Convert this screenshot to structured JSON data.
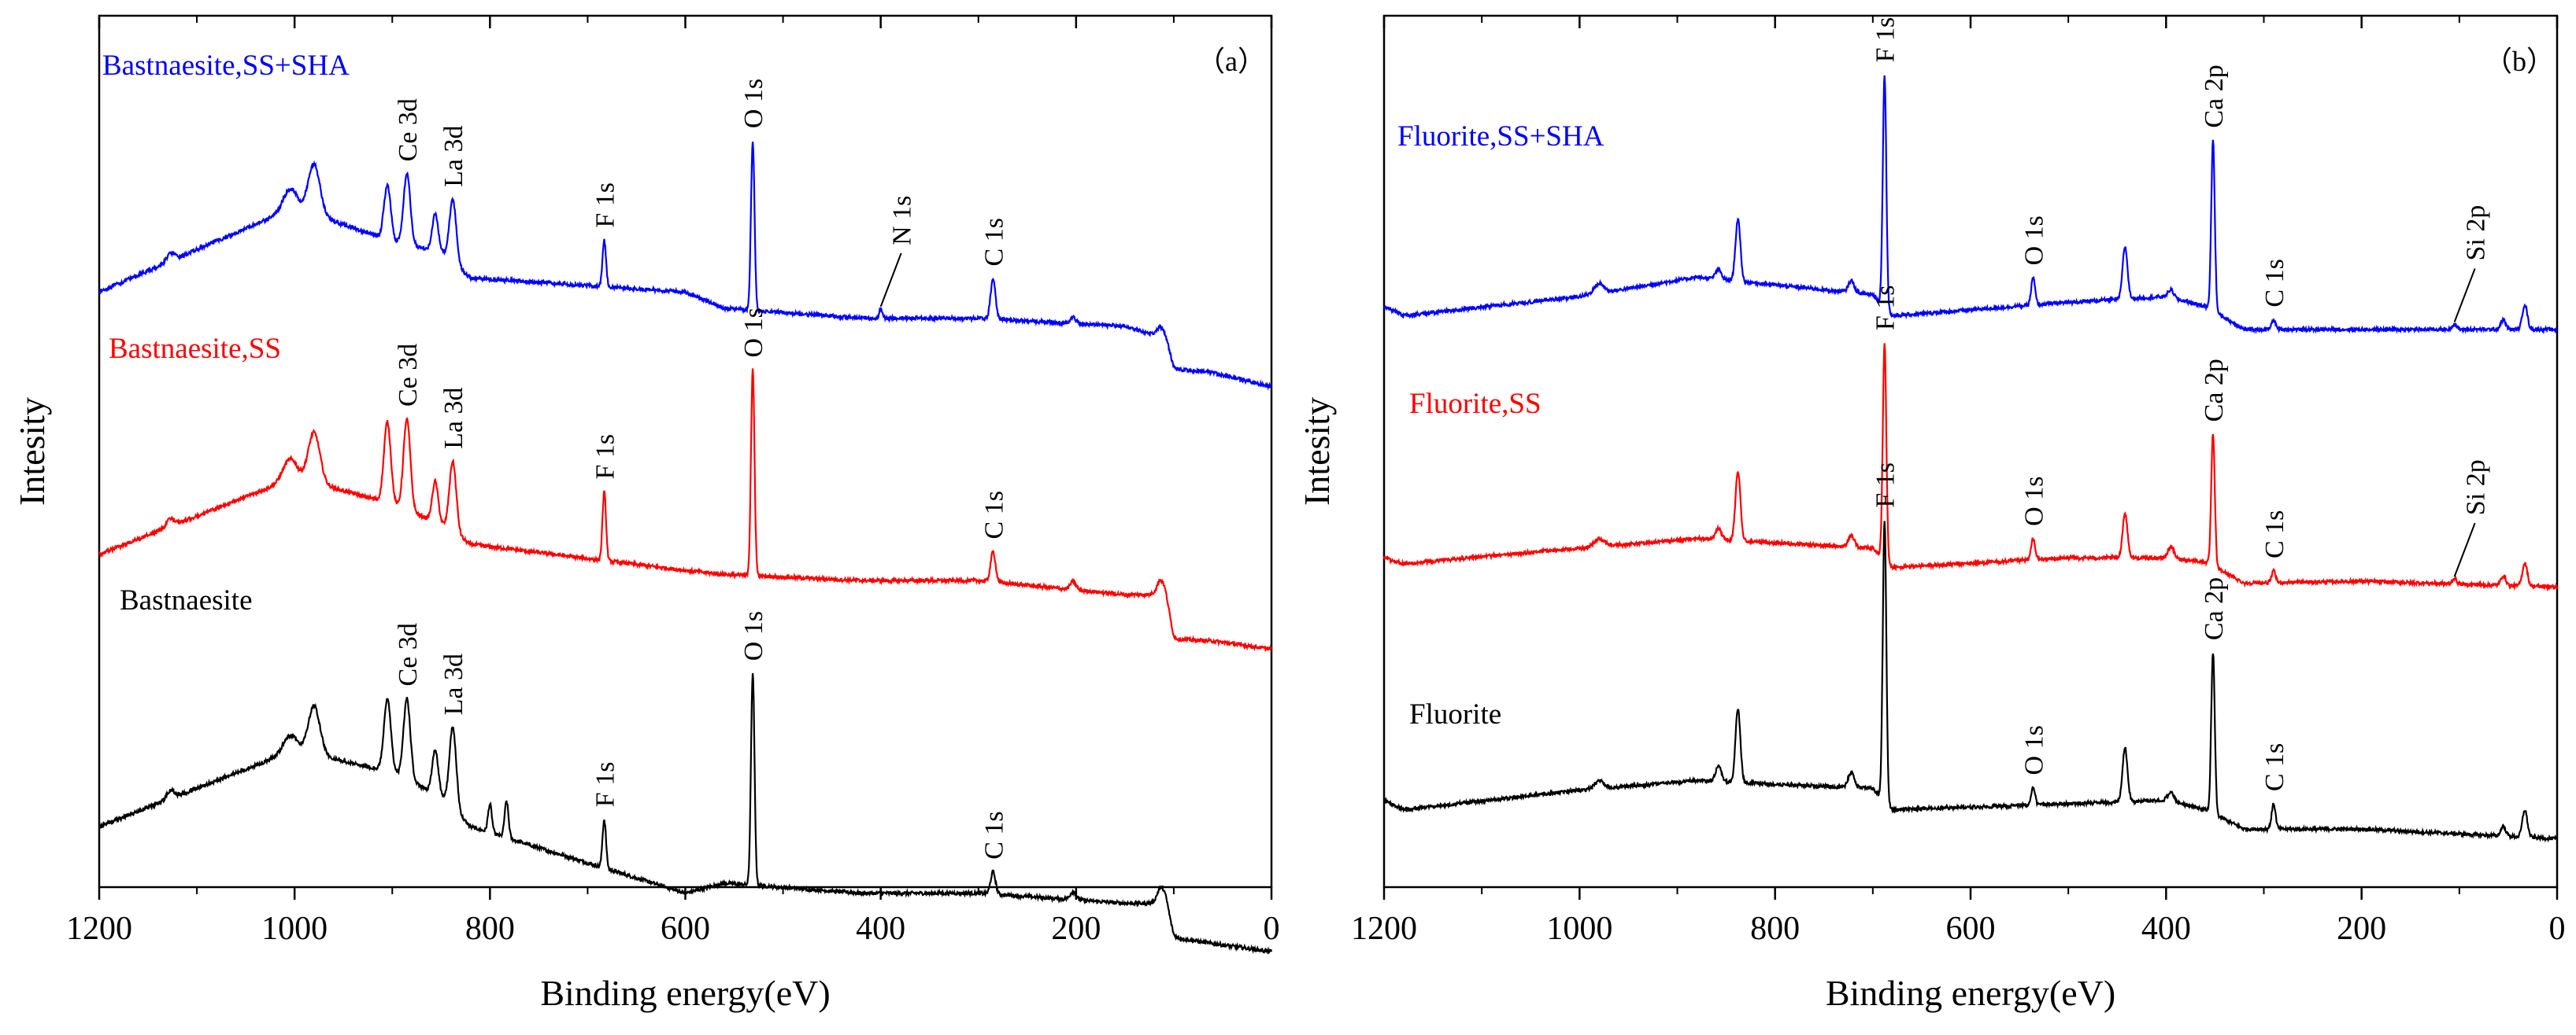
{
  "chart_data": [
    {
      "type": "line",
      "panel": "(a)",
      "xlabel": "Binding energy(eV)",
      "ylabel": "Intesity",
      "xlim": [
        1200,
        0
      ],
      "x_reversed": true,
      "xticks": [
        1200,
        1000,
        800,
        600,
        400,
        200,
        0
      ],
      "yticks": [],
      "grid": false,
      "series": [
        {
          "name": "Bastnaesite,SS+SHA",
          "color": "#0000ff",
          "baseline": 2.35,
          "background": [
            [
              1200,
              0.0
            ],
            [
              1000,
              0.42
            ],
            [
              900,
              0.25
            ],
            [
              850,
              0.2
            ],
            [
              820,
              0.07
            ],
            [
              600,
              0.0
            ],
            [
              560,
              -0.08
            ],
            [
              420,
              -0.13
            ],
            [
              300,
              -0.13
            ],
            [
              150,
              -0.17
            ],
            [
              115,
              -0.22
            ],
            [
              100,
              -0.38
            ],
            [
              60,
              -0.4
            ],
            [
              0,
              -0.47
            ]
          ],
          "peaks": [
            [
              1127,
              0.04,
              4
            ],
            [
              1005,
              0.1,
              7
            ],
            [
              980,
              0.25,
              6
            ],
            [
              905,
              0.27,
              3.5
            ],
            [
              885,
              0.35,
              3.5
            ],
            [
              856,
              0.18,
              3
            ],
            [
              838,
              0.31,
              3.5
            ],
            [
              683,
              0.23,
              1.8
            ],
            [
              531,
              0.84,
              1.8
            ],
            [
              400,
              0.05,
              1.5
            ],
            [
              285,
              0.2,
              2.5
            ],
            [
              203,
              0.03,
              3
            ],
            [
              110,
              0.08,
              5
            ]
          ],
          "peak_labels": [
            {
              "text": "Ce 3d",
              "x": 885
            },
            {
              "text": "La 3d",
              "x": 838
            },
            {
              "text": "F 1s",
              "x": 683
            },
            {
              "text": "O 1s",
              "x": 531
            },
            {
              "text": "N 1s",
              "x": 400
            },
            {
              "text": "C 1s",
              "x": 285
            }
          ]
        },
        {
          "name": "Bastnaesite,SS",
          "color": "#ff0000",
          "baseline": 1.05,
          "background": [
            [
              1200,
              0.0
            ],
            [
              1000,
              0.38
            ],
            [
              900,
              0.25
            ],
            [
              850,
              0.15
            ],
            [
              820,
              0.05
            ],
            [
              600,
              -0.08
            ],
            [
              560,
              -0.1
            ],
            [
              420,
              -0.13
            ],
            [
              300,
              -0.13
            ],
            [
              150,
              -0.2
            ],
            [
              115,
              -0.2
            ],
            [
              100,
              -0.42
            ],
            [
              60,
              -0.43
            ],
            [
              0,
              -0.47
            ]
          ],
          "peaks": [
            [
              1127,
              0.04,
              4
            ],
            [
              1005,
              0.1,
              7
            ],
            [
              980,
              0.25,
              6
            ],
            [
              905,
              0.4,
              3.5
            ],
            [
              885,
              0.45,
              3.5
            ],
            [
              856,
              0.2,
              3
            ],
            [
              838,
              0.35,
              3.5
            ],
            [
              683,
              0.34,
              1.8
            ],
            [
              531,
              1.02,
              1.8
            ],
            [
              285,
              0.15,
              2.5
            ],
            [
              203,
              0.04,
              3
            ],
            [
              110,
              0.12,
              5
            ]
          ],
          "peak_labels": [
            {
              "text": "Ce 3d",
              "x": 885
            },
            {
              "text": "La 3d",
              "x": 838
            },
            {
              "text": "F 1s",
              "x": 683
            },
            {
              "text": "O 1s",
              "x": 531
            },
            {
              "text": "C 1s",
              "x": 285
            }
          ]
        },
        {
          "name": "Bastnaesite",
          "color": "#000000",
          "baseline": -0.3,
          "background": [
            [
              1200,
              0.0
            ],
            [
              1000,
              0.38
            ],
            [
              900,
              0.27
            ],
            [
              850,
              0.15
            ],
            [
              820,
              0.0
            ],
            [
              600,
              -0.33
            ],
            [
              560,
              -0.28
            ],
            [
              420,
              -0.33
            ],
            [
              300,
              -0.33
            ],
            [
              150,
              -0.38
            ],
            [
              115,
              -0.38
            ],
            [
              100,
              -0.55
            ],
            [
              60,
              -0.58
            ],
            [
              0,
              -0.62
            ]
          ],
          "peaks": [
            [
              1127,
              0.04,
              4
            ],
            [
              1005,
              0.08,
              7
            ],
            [
              980,
              0.24,
              6
            ],
            [
              905,
              0.36,
              3.5
            ],
            [
              885,
              0.4,
              3.5
            ],
            [
              856,
              0.22,
              3
            ],
            [
              838,
              0.4,
              3.5
            ],
            [
              800,
              0.14,
              2
            ],
            [
              783,
              0.18,
              2
            ],
            [
              683,
              0.24,
              1.8
            ],
            [
              531,
              1.05,
              1.8
            ],
            [
              285,
              0.11,
              2.5
            ],
            [
              203,
              0.04,
              3
            ],
            [
              110,
              0.12,
              5
            ]
          ],
          "peak_labels": [
            {
              "text": "Ce 3d",
              "x": 885
            },
            {
              "text": "La 3d",
              "x": 838
            },
            {
              "text": "F 1s",
              "x": 683
            },
            {
              "text": "O 1s",
              "x": 531
            },
            {
              "text": "C 1s",
              "x": 285
            }
          ]
        }
      ]
    },
    {
      "type": "line",
      "panel": "(b)",
      "xlabel": "Binding energy(eV)",
      "ylabel": "Intesity",
      "xlim": [
        1200,
        0
      ],
      "x_reversed": true,
      "xticks": [
        1200,
        1000,
        800,
        600,
        400,
        200,
        0
      ],
      "yticks": [],
      "grid": false,
      "series": [
        {
          "name": "Fluorite,SS+SHA",
          "color": "#0000ff",
          "baseline": 2.55,
          "background": [
            [
              1200,
              0.0
            ],
            [
              1180,
              -0.05
            ],
            [
              1000,
              0.05
            ],
            [
              880,
              0.15
            ],
            [
              840,
              0.13
            ],
            [
              700,
              0.06
            ],
            [
              680,
              -0.05
            ],
            [
              500,
              0.02
            ],
            [
              400,
              0.05
            ],
            [
              360,
              0.0
            ],
            [
              320,
              -0.12
            ],
            [
              200,
              -0.12
            ],
            [
              0,
              -0.12
            ]
          ],
          "peaks": [
            [
              980,
              0.05,
              5
            ],
            [
              858,
              0.05,
              3
            ],
            [
              838,
              0.32,
              2.5
            ],
            [
              722,
              0.06,
              3
            ],
            [
              688,
              1.2,
              1.8
            ],
            [
              536,
              0.14,
              2
            ],
            [
              442,
              0.27,
              2.5
            ],
            [
              395,
              0.04,
              3
            ],
            [
              352,
              0.88,
              1.8
            ],
            [
              290,
              0.05,
              2
            ],
            [
              105,
              0.03,
              2
            ],
            [
              55,
              0.05,
              2.5
            ],
            [
              33,
              0.13,
              2.5
            ]
          ],
          "peak_labels": [
            {
              "text": "F 1s",
              "x": 688
            },
            {
              "text": "O 1s",
              "x": 536
            },
            {
              "text": "Ca 2p",
              "x": 352
            },
            {
              "text": "C 1s",
              "x": 290
            },
            {
              "text": "Si 2p",
              "x": 105
            }
          ]
        },
        {
          "name": "Fluorite,SS",
          "color": "#ff0000",
          "baseline": 1.25,
          "background": [
            [
              1200,
              0.0
            ],
            [
              1180,
              -0.03
            ],
            [
              1000,
              0.05
            ],
            [
              880,
              0.1
            ],
            [
              840,
              0.09
            ],
            [
              700,
              0.05
            ],
            [
              680,
              -0.05
            ],
            [
              500,
              0.0
            ],
            [
              400,
              0.0
            ],
            [
              360,
              -0.02
            ],
            [
              320,
              -0.13
            ],
            [
              200,
              -0.12
            ],
            [
              0,
              -0.15
            ]
          ],
          "peaks": [
            [
              980,
              0.04,
              5
            ],
            [
              858,
              0.06,
              3
            ],
            [
              838,
              0.36,
              2.5
            ],
            [
              722,
              0.06,
              3
            ],
            [
              688,
              1.12,
              1.8
            ],
            [
              536,
              0.11,
              2
            ],
            [
              442,
              0.23,
              2.5
            ],
            [
              395,
              0.06,
              3
            ],
            [
              352,
              0.68,
              1.8
            ],
            [
              290,
              0.06,
              2
            ],
            [
              105,
              0.03,
              2
            ],
            [
              55,
              0.05,
              2.5
            ],
            [
              33,
              0.12,
              2.5
            ]
          ],
          "peak_labels": [
            {
              "text": "F 1s",
              "x": 688
            },
            {
              "text": "O 1s",
              "x": 536
            },
            {
              "text": "Ca 2p",
              "x": 352
            },
            {
              "text": "C 1s",
              "x": 290
            },
            {
              "text": "Si 2p",
              "x": 105
            }
          ]
        },
        {
          "name": "Fluorite",
          "color": "#000000",
          "baseline": 0.0,
          "background": [
            [
              1200,
              0.0
            ],
            [
              1180,
              -0.05
            ],
            [
              1000,
              0.05
            ],
            [
              880,
              0.1
            ],
            [
              840,
              0.09
            ],
            [
              700,
              0.06
            ],
            [
              680,
              -0.05
            ],
            [
              500,
              -0.02
            ],
            [
              400,
              0.0
            ],
            [
              360,
              -0.05
            ],
            [
              320,
              -0.15
            ],
            [
              200,
              -0.15
            ],
            [
              0,
              -0.2
            ]
          ],
          "peaks": [
            [
              980,
              0.04,
              5
            ],
            [
              858,
              0.08,
              3
            ],
            [
              838,
              0.38,
              2.5
            ],
            [
              722,
              0.08,
              3
            ],
            [
              688,
              1.45,
              1.8
            ],
            [
              536,
              0.09,
              2
            ],
            [
              442,
              0.28,
              2.5
            ],
            [
              395,
              0.05,
              3
            ],
            [
              352,
              0.83,
              1.8
            ],
            [
              290,
              0.13,
              2
            ],
            [
              55,
              0.05,
              2.5
            ],
            [
              33,
              0.14,
              2.5
            ]
          ],
          "peak_labels": [
            {
              "text": "F 1s",
              "x": 688
            },
            {
              "text": "O 1s",
              "x": 536
            },
            {
              "text": "Ca 2p",
              "x": 352
            },
            {
              "text": "C 1s",
              "x": 290
            }
          ]
        }
      ]
    }
  ]
}
